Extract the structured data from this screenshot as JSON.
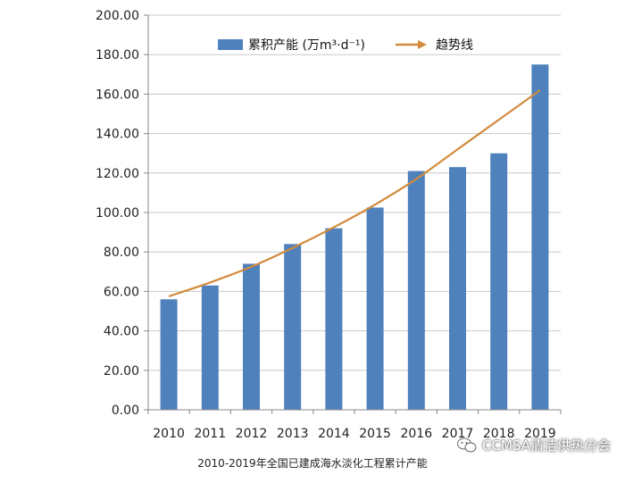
{
  "chart_data": {
    "type": "bar",
    "categories": [
      "2010",
      "2011",
      "2012",
      "2013",
      "2014",
      "2015",
      "2016",
      "2017",
      "2018",
      "2019"
    ],
    "series": [
      {
        "name": "累积产能 (万m³·d⁻¹)",
        "type": "bar",
        "color": "#4f81bd",
        "values": [
          56,
          63,
          74,
          84,
          92,
          102.5,
          121,
          123,
          130,
          175
        ]
      },
      {
        "name": "趋势线",
        "type": "line",
        "color": "#d28a3c",
        "values": [
          57.5,
          64.5,
          72.5,
          82,
          92.5,
          104,
          117,
          132,
          147,
          162
        ]
      }
    ],
    "ylim": [
      0,
      200
    ],
    "yticks": [
      "0.00",
      "20.00",
      "40.00",
      "60.00",
      "80.00",
      "100.00",
      "120.00",
      "140.00",
      "160.00",
      "180.00",
      "200.00"
    ],
    "grid": true,
    "legend": "top",
    "caption": "2010-2019年全国已建成海水淡化工程累计产能"
  },
  "watermark": {
    "text": "CCMSA清洁供热分会",
    "icon": "wechat-icon"
  }
}
